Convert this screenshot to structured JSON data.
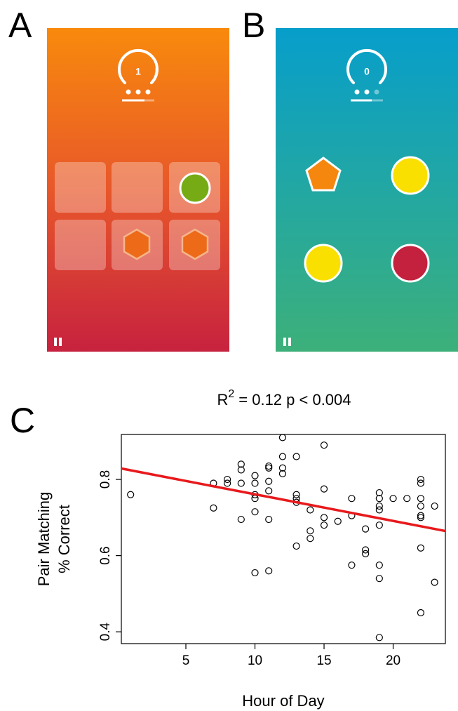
{
  "panels": {
    "a": {
      "label": "A",
      "score": "1"
    },
    "b": {
      "label": "B",
      "score": "0"
    },
    "c": {
      "label": "C"
    }
  },
  "chart_data": {
    "type": "scatter",
    "title_base": "R",
    "title_sup": "2",
    "title_rest": "= 0.12 p < 0.004",
    "x_label": "Hour of Day",
    "y_label_lines": [
      "Pair Matching",
      "% Correct"
    ],
    "xlim": [
      0.33,
      23.78
    ],
    "ylim": [
      0.369,
      0.918
    ],
    "xticks": [
      5,
      10,
      15,
      20
    ],
    "yticks": [
      0.4,
      0.6,
      0.8
    ],
    "fit": {
      "intercept": 0.831,
      "slope": -0.007,
      "color": "#e8191c"
    },
    "color": "#000000",
    "x": [
      1,
      7,
      7,
      8,
      8,
      9,
      9,
      9,
      9,
      10,
      10,
      10,
      10,
      10,
      10,
      11,
      11,
      11,
      11,
      11,
      11,
      12,
      12,
      12,
      12,
      13,
      13,
      13,
      13,
      13,
      14,
      14,
      14,
      15,
      15,
      15,
      15,
      16,
      17,
      17,
      17,
      18,
      18,
      18,
      19,
      19,
      19,
      19,
      19,
      19,
      19,
      19,
      20,
      21,
      22,
      22,
      22,
      22,
      22,
      22,
      22,
      22,
      23,
      23
    ],
    "values": [
      0.76,
      0.79,
      0.725,
      0.8,
      0.79,
      0.84,
      0.825,
      0.79,
      0.695,
      0.81,
      0.79,
      0.76,
      0.75,
      0.715,
      0.555,
      0.835,
      0.83,
      0.795,
      0.77,
      0.695,
      0.56,
      0.91,
      0.86,
      0.83,
      0.815,
      0.86,
      0.76,
      0.75,
      0.74,
      0.625,
      0.72,
      0.665,
      0.645,
      0.89,
      0.775,
      0.7,
      0.68,
      0.69,
      0.75,
      0.705,
      0.575,
      0.67,
      0.615,
      0.605,
      0.765,
      0.75,
      0.73,
      0.72,
      0.68,
      0.575,
      0.54,
      0.385,
      0.75,
      0.75,
      0.8,
      0.79,
      0.75,
      0.73,
      0.705,
      0.7,
      0.62,
      0.45,
      0.73,
      0.53
    ]
  }
}
